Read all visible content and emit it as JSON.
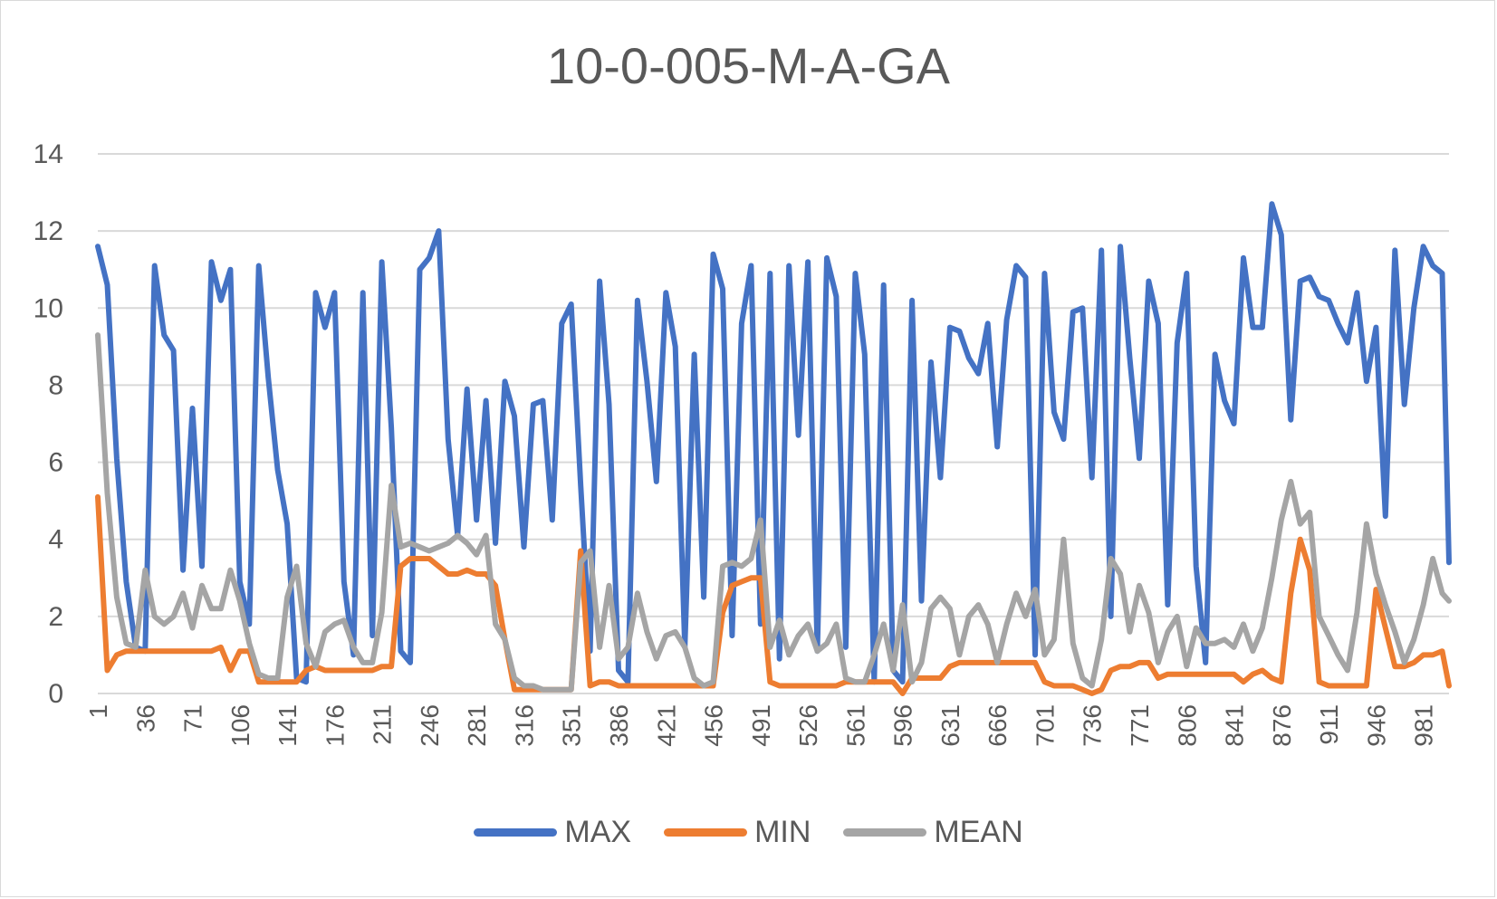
{
  "chart_data": {
    "type": "line",
    "title": "10-0-005-M-A-GA",
    "xlabel": "",
    "ylabel": "",
    "ylim": [
      0,
      14
    ],
    "yticks": [
      "0",
      "2",
      "4",
      "6",
      "8",
      "10",
      "12",
      "14"
    ],
    "xlim": [
      1,
      1000
    ],
    "xticks": [
      "1",
      "36",
      "71",
      "106",
      "141",
      "176",
      "211",
      "246",
      "281",
      "316",
      "351",
      "386",
      "421",
      "456",
      "491",
      "526",
      "561",
      "596",
      "631",
      "666",
      "701",
      "736",
      "771",
      "806",
      "841",
      "876",
      "911",
      "946",
      "981"
    ],
    "grid": true,
    "legend_position": "bottom",
    "series": [
      {
        "name": "MAX",
        "color": "#4472C4",
        "x": [
          1,
          8,
          15,
          22,
          29,
          36,
          43,
          50,
          57,
          64,
          71,
          78,
          85,
          92,
          99,
          106,
          113,
          120,
          127,
          134,
          141,
          148,
          155,
          162,
          169,
          176,
          183,
          190,
          197,
          204,
          211,
          218,
          225,
          232,
          239,
          246,
          253,
          260,
          267,
          274,
          281,
          288,
          295,
          302,
          309,
          316,
          323,
          330,
          337,
          344,
          351,
          358,
          365,
          372,
          379,
          386,
          393,
          400,
          407,
          414,
          421,
          428,
          435,
          442,
          449,
          456,
          463,
          470,
          477,
          484,
          491,
          498,
          505,
          512,
          519,
          526,
          533,
          540,
          547,
          554,
          561,
          568,
          575,
          582,
          589,
          596,
          603,
          610,
          617,
          624,
          631,
          638,
          645,
          652,
          659,
          666,
          673,
          680,
          687,
          694,
          701,
          708,
          715,
          722,
          729,
          736,
          743,
          750,
          757,
          764,
          771,
          778,
          785,
          792,
          799,
          806,
          813,
          820,
          827,
          834,
          841,
          848,
          855,
          862,
          869,
          876,
          883,
          890,
          897,
          904,
          911,
          918,
          925,
          932,
          939,
          946,
          953,
          960,
          967,
          974,
          981,
          988,
          995,
          1000
        ],
        "values": [
          11.6,
          10.6,
          6.1,
          2.9,
          1.2,
          1.1,
          11.1,
          9.3,
          8.9,
          3.2,
          7.4,
          3.3,
          11.2,
          10.2,
          11.0,
          2.9,
          1.8,
          11.1,
          8.2,
          5.8,
          4.4,
          0.4,
          0.3,
          10.4,
          9.5,
          10.4,
          2.9,
          1.0,
          10.4,
          1.5,
          11.2,
          6.9,
          1.1,
          0.8,
          11.0,
          11.3,
          12.0,
          6.6,
          4.1,
          7.9,
          4.5,
          7.6,
          3.9,
          8.1,
          7.2,
          3.8,
          7.5,
          7.6,
          4.5,
          9.6,
          10.1,
          5.4,
          1.1,
          10.7,
          7.5,
          0.6,
          0.3,
          10.2,
          8.1,
          5.5,
          10.4,
          9.0,
          1.2,
          8.8,
          2.5,
          11.4,
          10.5,
          1.5,
          9.6,
          11.1,
          1.8,
          10.9,
          0.9,
          11.1,
          6.7,
          11.2,
          1.1,
          11.3,
          10.3,
          1.2,
          10.9,
          8.8,
          0.3,
          10.6,
          0.6,
          0.3,
          10.2,
          2.4,
          8.6,
          5.6,
          9.5,
          9.4,
          8.7,
          8.3,
          9.6,
          6.4,
          9.7,
          11.1,
          10.8,
          1.0,
          10.9,
          7.3,
          6.6,
          9.9,
          10.0,
          5.6,
          11.5,
          2.0,
          11.6,
          8.7,
          6.1,
          10.7,
          9.6,
          2.3,
          9.1,
          10.9,
          3.3,
          0.8,
          8.8,
          7.6,
          7.0,
          11.3,
          9.5,
          9.5,
          12.7,
          11.9,
          7.1,
          10.7,
          10.8,
          10.3,
          10.2,
          9.6,
          9.1,
          10.4,
          8.1,
          9.5,
          4.6,
          11.5,
          7.5,
          10.0,
          11.6,
          11.1,
          10.9,
          3.4
        ]
      },
      {
        "name": "MIN",
        "color": "#ED7D31",
        "x": [
          1,
          8,
          15,
          22,
          29,
          36,
          43,
          50,
          57,
          64,
          71,
          78,
          85,
          92,
          99,
          106,
          113,
          120,
          127,
          134,
          141,
          148,
          155,
          162,
          169,
          176,
          183,
          190,
          197,
          204,
          211,
          218,
          225,
          232,
          239,
          246,
          253,
          260,
          267,
          274,
          281,
          288,
          295,
          302,
          309,
          316,
          323,
          330,
          337,
          344,
          351,
          358,
          365,
          372,
          379,
          386,
          393,
          400,
          407,
          414,
          421,
          428,
          435,
          442,
          449,
          456,
          463,
          470,
          477,
          484,
          491,
          498,
          505,
          512,
          519,
          526,
          533,
          540,
          547,
          554,
          561,
          568,
          575,
          582,
          589,
          596,
          603,
          610,
          617,
          624,
          631,
          638,
          645,
          652,
          659,
          666,
          673,
          680,
          687,
          694,
          701,
          708,
          715,
          722,
          729,
          736,
          743,
          750,
          757,
          764,
          771,
          778,
          785,
          792,
          799,
          806,
          813,
          820,
          827,
          834,
          841,
          848,
          855,
          862,
          869,
          876,
          883,
          890,
          897,
          904,
          911,
          918,
          925,
          932,
          939,
          946,
          953,
          960,
          967,
          974,
          981,
          988,
          995,
          1000
        ],
        "values": [
          5.1,
          0.6,
          1.0,
          1.1,
          1.1,
          1.1,
          1.1,
          1.1,
          1.1,
          1.1,
          1.1,
          1.1,
          1.1,
          1.2,
          0.6,
          1.1,
          1.1,
          0.3,
          0.3,
          0.3,
          0.3,
          0.3,
          0.6,
          0.7,
          0.6,
          0.6,
          0.6,
          0.6,
          0.6,
          0.6,
          0.7,
          0.7,
          3.3,
          3.5,
          3.5,
          3.5,
          3.3,
          3.1,
          3.1,
          3.2,
          3.1,
          3.1,
          2.8,
          1.4,
          0.1,
          0.1,
          0.1,
          0.1,
          0.1,
          0.1,
          0.1,
          3.7,
          0.2,
          0.3,
          0.3,
          0.2,
          0.2,
          0.2,
          0.2,
          0.2,
          0.2,
          0.2,
          0.2,
          0.2,
          0.2,
          0.2,
          2.1,
          2.8,
          2.9,
          3.0,
          3.0,
          0.3,
          0.2,
          0.2,
          0.2,
          0.2,
          0.2,
          0.2,
          0.2,
          0.3,
          0.3,
          0.3,
          0.3,
          0.3,
          0.3,
          0.0,
          0.4,
          0.4,
          0.4,
          0.4,
          0.7,
          0.8,
          0.8,
          0.8,
          0.8,
          0.8,
          0.8,
          0.8,
          0.8,
          0.8,
          0.3,
          0.2,
          0.2,
          0.2,
          0.1,
          0.0,
          0.1,
          0.6,
          0.7,
          0.7,
          0.8,
          0.8,
          0.4,
          0.5,
          0.5,
          0.5,
          0.5,
          0.5,
          0.5,
          0.5,
          0.5,
          0.3,
          0.5,
          0.6,
          0.4,
          0.3,
          2.6,
          4.0,
          3.2,
          0.3,
          0.2,
          0.2,
          0.2,
          0.2,
          0.2,
          2.7,
          1.7,
          0.7,
          0.7,
          0.8,
          1.0,
          1.0,
          1.1,
          0.2
        ]
      },
      {
        "name": "MEAN",
        "color": "#A5A5A5",
        "x": [
          1,
          8,
          15,
          22,
          29,
          36,
          43,
          50,
          57,
          64,
          71,
          78,
          85,
          92,
          99,
          106,
          113,
          120,
          127,
          134,
          141,
          148,
          155,
          162,
          169,
          176,
          183,
          190,
          197,
          204,
          211,
          218,
          225,
          232,
          239,
          246,
          253,
          260,
          267,
          274,
          281,
          288,
          295,
          302,
          309,
          316,
          323,
          330,
          337,
          344,
          351,
          358,
          365,
          372,
          379,
          386,
          393,
          400,
          407,
          414,
          421,
          428,
          435,
          442,
          449,
          456,
          463,
          470,
          477,
          484,
          491,
          498,
          505,
          512,
          519,
          526,
          533,
          540,
          547,
          554,
          561,
          568,
          575,
          582,
          589,
          596,
          603,
          610,
          617,
          624,
          631,
          638,
          645,
          652,
          659,
          666,
          673,
          680,
          687,
          694,
          701,
          708,
          715,
          722,
          729,
          736,
          743,
          750,
          757,
          764,
          771,
          778,
          785,
          792,
          799,
          806,
          813,
          820,
          827,
          834,
          841,
          848,
          855,
          862,
          869,
          876,
          883,
          890,
          897,
          904,
          911,
          918,
          925,
          932,
          939,
          946,
          953,
          960,
          967,
          974,
          981,
          988,
          995,
          1000
        ],
        "values": [
          9.3,
          5.2,
          2.5,
          1.3,
          1.2,
          3.2,
          2.0,
          1.8,
          2.0,
          2.6,
          1.7,
          2.8,
          2.2,
          2.2,
          3.2,
          2.4,
          1.3,
          0.5,
          0.4,
          0.4,
          2.5,
          3.3,
          1.3,
          0.7,
          1.6,
          1.8,
          1.9,
          1.2,
          0.8,
          0.8,
          2.1,
          5.4,
          3.8,
          3.9,
          3.8,
          3.7,
          3.8,
          3.9,
          4.1,
          3.9,
          3.6,
          4.1,
          1.8,
          1.4,
          0.4,
          0.2,
          0.2,
          0.1,
          0.1,
          0.1,
          0.1,
          3.4,
          3.7,
          1.2,
          2.8,
          0.9,
          1.2,
          2.6,
          1.6,
          0.9,
          1.5,
          1.6,
          1.2,
          0.4,
          0.2,
          0.3,
          3.3,
          3.4,
          3.3,
          3.5,
          4.5,
          1.2,
          1.9,
          1.0,
          1.5,
          1.8,
          1.1,
          1.3,
          1.8,
          0.4,
          0.3,
          0.3,
          1.0,
          1.8,
          0.6,
          2.3,
          0.3,
          0.8,
          2.2,
          2.5,
          2.2,
          1.0,
          2.0,
          2.3,
          1.8,
          0.8,
          1.8,
          2.6,
          2.0,
          2.7,
          1.0,
          1.4,
          4.0,
          1.3,
          0.4,
          0.2,
          1.4,
          3.5,
          3.1,
          1.6,
          2.8,
          2.1,
          0.8,
          1.6,
          2.0,
          0.7,
          1.7,
          1.3,
          1.3,
          1.4,
          1.2,
          1.8,
          1.1,
          1.7,
          3.0,
          4.5,
          5.5,
          4.4,
          4.7,
          2.0,
          1.5,
          1.0,
          0.6,
          2.1,
          4.4,
          3.1,
          2.3,
          1.6,
          0.8,
          1.4,
          2.3,
          3.5,
          2.6,
          2.4
        ]
      }
    ]
  }
}
